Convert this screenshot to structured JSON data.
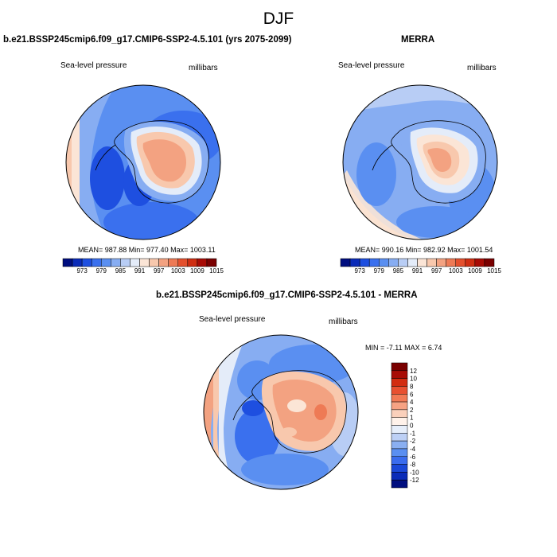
{
  "main_title": "DJF",
  "panels": [
    {
      "title": "b.e21.BSSP245cmip6.f09_g17.CMIP6-SSP2-4.5.101 (yrs 2075-2099)",
      "left_label": "Sea-level pressure",
      "right_label": "millibars",
      "stats": "MEAN= 987.88   Min= 977.40   Max= 1003.11",
      "colorbar_ticks": [
        "973",
        "979",
        "985",
        "991",
        "997",
        "1003",
        "1009",
        "1015"
      ]
    },
    {
      "title": "MERRA",
      "left_label": "Sea-level pressure",
      "right_label": "millibars",
      "stats": "MEAN= 990.16   Min= 982.92   Max= 1001.54",
      "colorbar_ticks": [
        "973",
        "979",
        "985",
        "991",
        "997",
        "1003",
        "1009",
        "1015"
      ]
    },
    {
      "title": "b.e21.BSSP245cmip6.f09_g17.CMIP6-SSP2-4.5.101 - MERRA",
      "left_label": "Sea-level pressure",
      "right_label": "millibars",
      "stats": "MIN =  -7.11  MAX =   6.74",
      "colorbar_ticks": [
        "12",
        "10",
        "8",
        "6",
        "4",
        "2",
        "1",
        "0",
        "-1",
        "-2",
        "-4",
        "-6",
        "-8",
        "-10",
        "-12"
      ]
    }
  ],
  "colors": {
    "sequential": [
      "#000e7f",
      "#0a2bb8",
      "#1e4fe0",
      "#3a70ee",
      "#5a8ff1",
      "#87adf2",
      "#b8cdf5",
      "#e4ecf9",
      "#fbe5d6",
      "#f8c8ad",
      "#f3a281",
      "#ee7a55",
      "#e4502d",
      "#cf2e12",
      "#a80b05",
      "#7a0000"
    ],
    "diverging": [
      "#7a0000",
      "#a80b05",
      "#d22c10",
      "#e85030",
      "#f27a55",
      "#f6a283",
      "#fad0bb",
      "#fff2ea",
      "#e6eefa",
      "#bdd0f5",
      "#8aaff1",
      "#5a8ff1",
      "#3a6cee",
      "#1a48d8",
      "#0a2bb8",
      "#000e7f"
    ]
  }
}
